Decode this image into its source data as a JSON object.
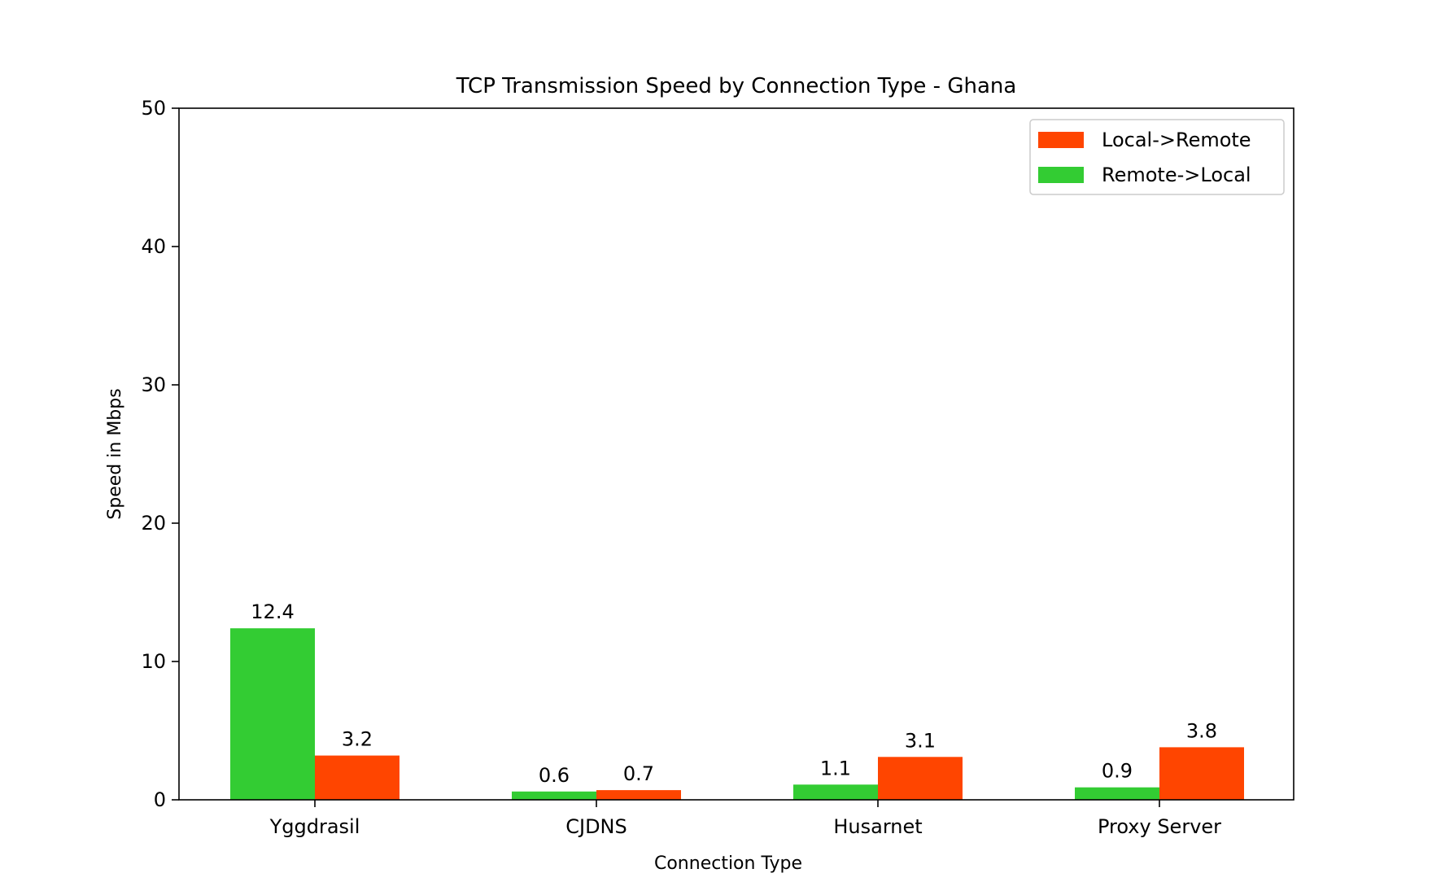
{
  "chart_data": {
    "type": "bar",
    "title": "TCP Transmission Speed by Connection Type - Ghana",
    "xlabel": "Connection Type",
    "ylabel": "Speed in Mbps",
    "categories": [
      "Yggdrasil",
      "CJDNS",
      "Husarnet",
      "Proxy Server"
    ],
    "ylim": [
      0,
      50
    ],
    "yticks": [
      0,
      10,
      20,
      30,
      40,
      50
    ],
    "ytick_labels": [
      "0",
      "10",
      "20",
      "30",
      "40",
      "50"
    ],
    "grid": false,
    "legend_position": "top-right",
    "series": [
      {
        "name": "Remote->Local",
        "color": "#33cc33",
        "values": [
          12.4,
          0.6,
          1.1,
          0.9
        ],
        "labels": [
          "12.4",
          "0.6",
          "1.1",
          "0.9"
        ]
      },
      {
        "name": "Local->Remote",
        "color": "#ff4500",
        "values": [
          3.2,
          0.7,
          3.1,
          3.8
        ],
        "labels": [
          "3.2",
          "0.7",
          "3.1",
          "3.8"
        ]
      }
    ],
    "legend_order": [
      1,
      0
    ]
  }
}
